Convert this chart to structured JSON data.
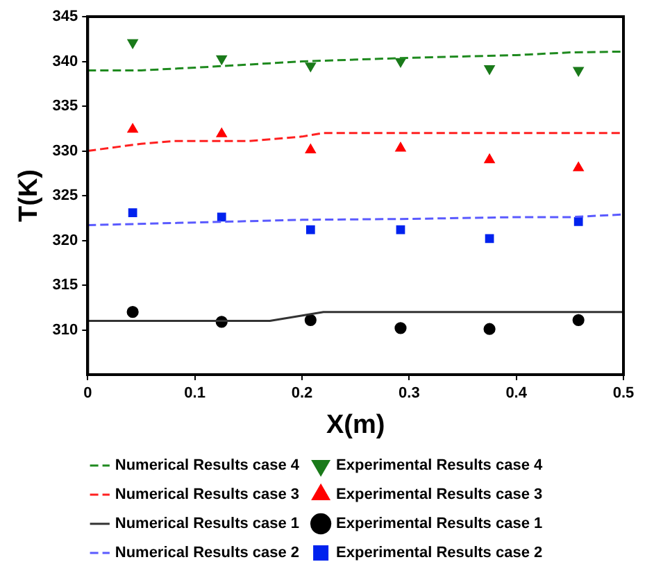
{
  "chart_data": {
    "type": "line",
    "xlabel": "X(m)",
    "ylabel": "T(K)",
    "xlim": [
      0,
      0.5
    ],
    "xticks": [
      0,
      0.1,
      0.2,
      0.3,
      0.4,
      0.5
    ],
    "ylim": [
      305,
      345
    ],
    "yticks": [
      310,
      315,
      320,
      325,
      330,
      335,
      340,
      345
    ],
    "grid": false,
    "legend": "bottom",
    "series": [
      {
        "name": "Numerical Results case 4",
        "line_style": "dashed",
        "marker": "none",
        "color": "#1f8a1f",
        "x": [
          0,
          0.05,
          0.1,
          0.2,
          0.3,
          0.4,
          0.45,
          0.5
        ],
        "values": [
          339,
          339,
          339.3,
          340,
          340.4,
          340.7,
          341,
          341.1
        ]
      },
      {
        "name": "Experimental Results case 4",
        "type": "scatter",
        "marker": "triangle",
        "color": "#1a7a1a",
        "x": [
          0.042,
          0.125,
          0.208,
          0.292,
          0.375,
          0.458
        ],
        "values": [
          342.1,
          340.3,
          339.5,
          340,
          339.2,
          339
        ]
      },
      {
        "name": "Numerical Results case 3",
        "line_style": "dashed",
        "marker": "none",
        "color": "#ff2020",
        "x": [
          0,
          0.05,
          0.08,
          0.15,
          0.2,
          0.22,
          0.5
        ],
        "values": [
          330,
          330.8,
          331.1,
          331.1,
          331.6,
          332,
          332
        ]
      },
      {
        "name": "Experimental Results case 3",
        "type": "scatter",
        "marker": "triangle",
        "color": "#ff0000",
        "x": [
          0.042,
          0.125,
          0.208,
          0.292,
          0.375,
          0.458
        ],
        "values": [
          332.4,
          331.9,
          330.1,
          330.3,
          329,
          328.1
        ]
      },
      {
        "name": "Numerical Results case 1",
        "line_style": "solid",
        "marker": "none",
        "color": "#333333",
        "x": [
          0,
          0.17,
          0.22,
          0.5
        ],
        "values": [
          311,
          311,
          312,
          312
        ]
      },
      {
        "name": "Experimental Results case 1",
        "type": "scatter",
        "marker": "circle",
        "color": "#000000",
        "x": [
          0.042,
          0.125,
          0.208,
          0.292,
          0.375,
          0.458
        ],
        "values": [
          312,
          310.9,
          311.1,
          310.2,
          310.1,
          311.1
        ]
      },
      {
        "name": "Numerical Results case 2",
        "line_style": "dashed",
        "marker": "none",
        "color": "#5a5aff",
        "x": [
          0,
          0.1,
          0.2,
          0.3,
          0.4,
          0.45,
          0.5
        ],
        "values": [
          321.7,
          322,
          322.3,
          322.4,
          322.6,
          322.6,
          322.9
        ]
      },
      {
        "name": "Experimental Results case 2",
        "type": "scatter",
        "marker": "square",
        "color": "#0022ee",
        "x": [
          0.042,
          0.125,
          0.208,
          0.292,
          0.375,
          0.458
        ],
        "values": [
          323.1,
          322.6,
          321.2,
          321.2,
          320.2,
          322.1
        ]
      }
    ]
  }
}
